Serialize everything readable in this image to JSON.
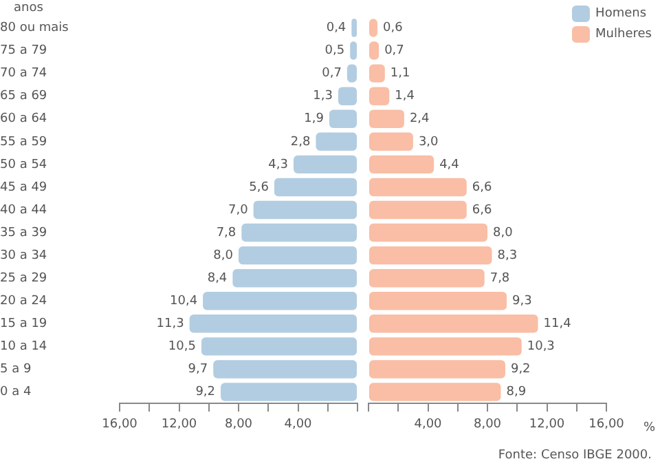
{
  "chart_data": [
    {
      "type": "bar",
      "orientation": "horizontal",
      "ylabel": "anos",
      "categories": [
        "80 ou mais",
        "75 a 79",
        "70 a 74",
        "65 a 69",
        "60 a 64",
        "55 a 59",
        "50 a 54",
        "45 a 49",
        "40 a 44",
        "35 a 39",
        "30 a 34",
        "25 a 29",
        "20 a 24",
        "15 a 19",
        "10 a 14",
        "5 a 9",
        "0 a 4"
      ],
      "series": [
        {
          "name": "Homens",
          "color": "#b2cde1",
          "values": [
            0.4,
            0.5,
            0.7,
            1.3,
            1.9,
            2.8,
            4.3,
            5.6,
            7.0,
            7.8,
            8.0,
            8.4,
            10.4,
            11.3,
            10.5,
            9.7,
            9.2
          ],
          "value_labels": [
            "0,4",
            "0,5",
            "0,7",
            "1,3",
            "1,9",
            "2,8",
            "4,3",
            "5,6",
            "7,0",
            "7,8",
            "8,0",
            "8,4",
            "10,4",
            "11,3",
            "10,5",
            "9,7",
            "9,2"
          ]
        }
      ],
      "xlim": [
        16,
        0
      ],
      "xticks": [
        {
          "value": 16,
          "label": "16,00"
        },
        {
          "value": 14,
          "label": null
        },
        {
          "value": 12,
          "label": "12,00"
        },
        {
          "value": 10,
          "label": null
        },
        {
          "value": 8,
          "label": "8,00"
        },
        {
          "value": 6,
          "label": null
        },
        {
          "value": 4,
          "label": "4,00"
        },
        {
          "value": 2,
          "label": null
        },
        {
          "value": 0,
          "label": null
        }
      ],
      "legend": "top right"
    },
    {
      "type": "bar",
      "orientation": "horizontal",
      "xlabel": "%",
      "categories": [
        null,
        null,
        null,
        null,
        null,
        null,
        null,
        null,
        null,
        null,
        null,
        null,
        null,
        null,
        null,
        null,
        null
      ],
      "series": [
        {
          "name": "Mulheres",
          "color": "#f9bea5",
          "values": [
            0.6,
            0.7,
            1.1,
            1.4,
            2.4,
            3.0,
            4.4,
            6.6,
            6.6,
            8.0,
            8.3,
            7.8,
            9.3,
            11.4,
            10.3,
            9.2,
            8.9
          ],
          "value_labels": [
            "0,6",
            "0,7",
            "1,1",
            "1,4",
            "2,4",
            "3,0",
            "4,4",
            "6,6",
            "6,6",
            "8,0",
            "8,3",
            "7,8",
            "9,3",
            "11,4",
            "10,3",
            "9,2",
            "8,9"
          ]
        }
      ],
      "xlim": [
        0,
        16
      ],
      "xticks": [
        {
          "value": 0,
          "label": null
        },
        {
          "value": 2,
          "label": null
        },
        {
          "value": 4,
          "label": "4,00"
        },
        {
          "value": 6,
          "label": null
        },
        {
          "value": 8,
          "label": "8,00"
        },
        {
          "value": 10,
          "label": null
        },
        {
          "value": 12,
          "label": "12,00"
        },
        {
          "value": 14,
          "label": null
        },
        {
          "value": 16,
          "label": "16,00"
        }
      ],
      "tick_labels": "x",
      "legend": "top right",
      "annotations": [
        "Fonte: Censo IBGE 2000."
      ]
    }
  ]
}
